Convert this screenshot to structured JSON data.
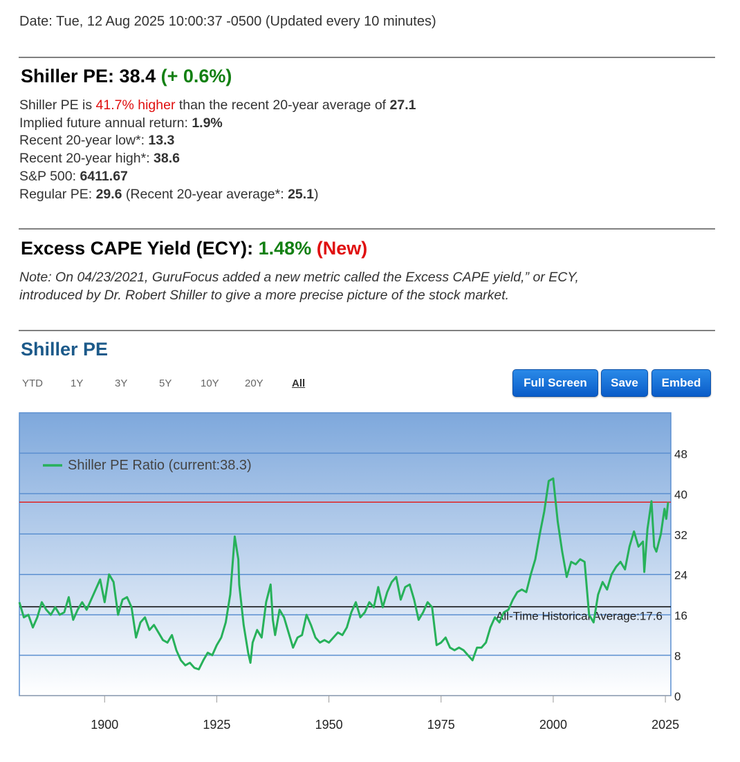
{
  "date_line": "Date: Tue, 12 Aug 2025 10:00:37 -0500 (Updated every 10 minutes)",
  "shiller": {
    "title_label": "Shiller PE: ",
    "value": "38.4",
    "change": "(+ 0.6%)",
    "l1_a": "Shiller PE is ",
    "l1_pct": "41.7% higher",
    "l1_b": " than the recent 20-year average of ",
    "l1_avg": "27.1",
    "l2_label": "Implied future annual return: ",
    "l2_value": "1.9%",
    "l3_label": "Recent 20-year low*: ",
    "l3_value": "13.3",
    "l4_label": "Recent 20-year high*: ",
    "l4_value": "38.6",
    "l5_label": "S&P 500: ",
    "l5_value": "6411.67",
    "l6_label": "Regular PE: ",
    "l6_value": "29.6",
    "l6_mid": " (Recent 20-year average*: ",
    "l6_avg": "25.1",
    "l6_end": ")"
  },
  "ecy": {
    "title_label": "Excess CAPE Yield (ECY): ",
    "value": "1.48%",
    "badge": "(New)",
    "note_line1": "Note: On 04/23/2021, GuruFocus added a new metric called the Excess CAPE yield,” or ECY,",
    "note_line2": "introduced by Dr. Robert Shiller to give a more precise picture of the stock market."
  },
  "chart_section": {
    "title": "Shiller PE",
    "ranges": [
      "YTD",
      "1Y",
      "3Y",
      "5Y",
      "10Y",
      "20Y",
      "All"
    ],
    "active_range": "All",
    "buttons": {
      "full_screen": "Full Screen",
      "save": "Save",
      "embed": "Embed"
    }
  },
  "colors": {
    "series": "#27b15a",
    "current_line": "#e02020",
    "average_line": "#000000",
    "title_blue": "#1c5a8a",
    "plot_top": "#7ea8dc",
    "plot_bottom": "#ffffff"
  },
  "chart_data": {
    "type": "line",
    "legend": "Shiller PE Ratio (current:38.3)",
    "legend_position": "top-left",
    "average_label": "All-Time Historical Average:17.6",
    "average_value": 17.6,
    "current_value": 38.3,
    "x_ticks": [
      1900,
      1925,
      1950,
      1975,
      2000,
      2025
    ],
    "y_ticks": [
      0,
      8,
      16,
      24,
      32,
      40,
      48
    ],
    "xlim": [
      1881,
      2025.6
    ],
    "ylim": [
      0,
      56
    ],
    "grid": true,
    "series": [
      {
        "name": "Shiller PE Ratio",
        "points": [
          [
            1881,
            18.5
          ],
          [
            1882,
            15.5
          ],
          [
            1883,
            16.0
          ],
          [
            1884,
            13.5
          ],
          [
            1885,
            15.5
          ],
          [
            1886,
            18.5
          ],
          [
            1887,
            17.0
          ],
          [
            1888,
            16.0
          ],
          [
            1889,
            17.5
          ],
          [
            1890,
            16.0
          ],
          [
            1891,
            16.5
          ],
          [
            1892,
            19.5
          ],
          [
            1893,
            15.0
          ],
          [
            1894,
            17.0
          ],
          [
            1895,
            18.5
          ],
          [
            1896,
            17.0
          ],
          [
            1897,
            19.0
          ],
          [
            1898,
            21.0
          ],
          [
            1899,
            23.0
          ],
          [
            1900,
            18.5
          ],
          [
            1901,
            24.0
          ],
          [
            1902,
            22.5
          ],
          [
            1903,
            16.0
          ],
          [
            1904,
            19.0
          ],
          [
            1905,
            19.5
          ],
          [
            1906,
            17.5
          ],
          [
            1907,
            11.5
          ],
          [
            1908,
            14.5
          ],
          [
            1909,
            15.5
          ],
          [
            1910,
            13.0
          ],
          [
            1911,
            14.0
          ],
          [
            1912,
            12.5
          ],
          [
            1913,
            11.0
          ],
          [
            1914,
            10.5
          ],
          [
            1915,
            12.0
          ],
          [
            1916,
            9.0
          ],
          [
            1917,
            7.0
          ],
          [
            1918,
            6.0
          ],
          [
            1919,
            6.5
          ],
          [
            1920,
            5.5
          ],
          [
            1921,
            5.2
          ],
          [
            1922,
            7.0
          ],
          [
            1923,
            8.5
          ],
          [
            1924,
            8.0
          ],
          [
            1925,
            10.0
          ],
          [
            1926,
            11.5
          ],
          [
            1927,
            14.5
          ],
          [
            1928,
            20.0
          ],
          [
            1929,
            31.5
          ],
          [
            1929.8,
            27.0
          ],
          [
            1930,
            22.0
          ],
          [
            1931,
            14.0
          ],
          [
            1932,
            8.5
          ],
          [
            1932.5,
            6.5
          ],
          [
            1933,
            10.5
          ],
          [
            1934,
            13.0
          ],
          [
            1935,
            11.5
          ],
          [
            1936,
            18.5
          ],
          [
            1937,
            22.0
          ],
          [
            1937.5,
            15.0
          ],
          [
            1938,
            12.0
          ],
          [
            1939,
            17.0
          ],
          [
            1940,
            15.5
          ],
          [
            1941,
            12.5
          ],
          [
            1942,
            9.5
          ],
          [
            1943,
            11.5
          ],
          [
            1944,
            12.0
          ],
          [
            1945,
            16.0
          ],
          [
            1946,
            14.0
          ],
          [
            1947,
            11.5
          ],
          [
            1948,
            10.5
          ],
          [
            1949,
            11.0
          ],
          [
            1950,
            10.5
          ],
          [
            1951,
            11.5
          ],
          [
            1952,
            12.5
          ],
          [
            1953,
            12.0
          ],
          [
            1954,
            13.5
          ],
          [
            1955,
            16.5
          ],
          [
            1956,
            18.5
          ],
          [
            1957,
            15.5
          ],
          [
            1958,
            16.5
          ],
          [
            1959,
            18.5
          ],
          [
            1960,
            17.5
          ],
          [
            1961,
            21.5
          ],
          [
            1962,
            17.5
          ],
          [
            1963,
            20.5
          ],
          [
            1964,
            22.5
          ],
          [
            1965,
            23.5
          ],
          [
            1966,
            19.0
          ],
          [
            1967,
            21.5
          ],
          [
            1968,
            22.0
          ],
          [
            1969,
            19.0
          ],
          [
            1970,
            15.0
          ],
          [
            1971,
            16.5
          ],
          [
            1972,
            18.5
          ],
          [
            1973,
            17.5
          ],
          [
            1974,
            10.0
          ],
          [
            1975,
            10.5
          ],
          [
            1976,
            11.5
          ],
          [
            1977,
            9.5
          ],
          [
            1978,
            9.0
          ],
          [
            1979,
            9.5
          ],
          [
            1980,
            9.0
          ],
          [
            1981,
            8.0
          ],
          [
            1982,
            7.0
          ],
          [
            1983,
            9.5
          ],
          [
            1984,
            9.5
          ],
          [
            1985,
            10.5
          ],
          [
            1986,
            13.5
          ],
          [
            1987,
            15.5
          ],
          [
            1988,
            14.5
          ],
          [
            1989,
            16.5
          ],
          [
            1990,
            17.0
          ],
          [
            1991,
            19.0
          ],
          [
            1992,
            20.5
          ],
          [
            1993,
            21.0
          ],
          [
            1994,
            20.5
          ],
          [
            1995,
            24.0
          ],
          [
            1996,
            27.0
          ],
          [
            1997,
            32.0
          ],
          [
            1998,
            36.5
          ],
          [
            1999,
            42.5
          ],
          [
            2000,
            43.0
          ],
          [
            2001,
            34.5
          ],
          [
            2002,
            28.5
          ],
          [
            2003,
            23.5
          ],
          [
            2004,
            26.5
          ],
          [
            2005,
            26.0
          ],
          [
            2006,
            27.0
          ],
          [
            2007,
            26.5
          ],
          [
            2008,
            16.0
          ],
          [
            2009,
            14.5
          ],
          [
            2010,
            20.0
          ],
          [
            2011,
            22.5
          ],
          [
            2012,
            21.0
          ],
          [
            2013,
            24.0
          ],
          [
            2014,
            25.5
          ],
          [
            2015,
            26.5
          ],
          [
            2016,
            25.0
          ],
          [
            2017,
            29.5
          ],
          [
            2018,
            32.5
          ],
          [
            2019,
            29.5
          ],
          [
            2020,
            30.5
          ],
          [
            2020.3,
            24.5
          ],
          [
            2021,
            33.0
          ],
          [
            2021.9,
            38.5
          ],
          [
            2022.5,
            29.5
          ],
          [
            2023,
            28.5
          ],
          [
            2024,
            32.0
          ],
          [
            2024.8,
            37.0
          ],
          [
            2025.2,
            35.0
          ],
          [
            2025.6,
            38.3
          ]
        ]
      }
    ]
  }
}
